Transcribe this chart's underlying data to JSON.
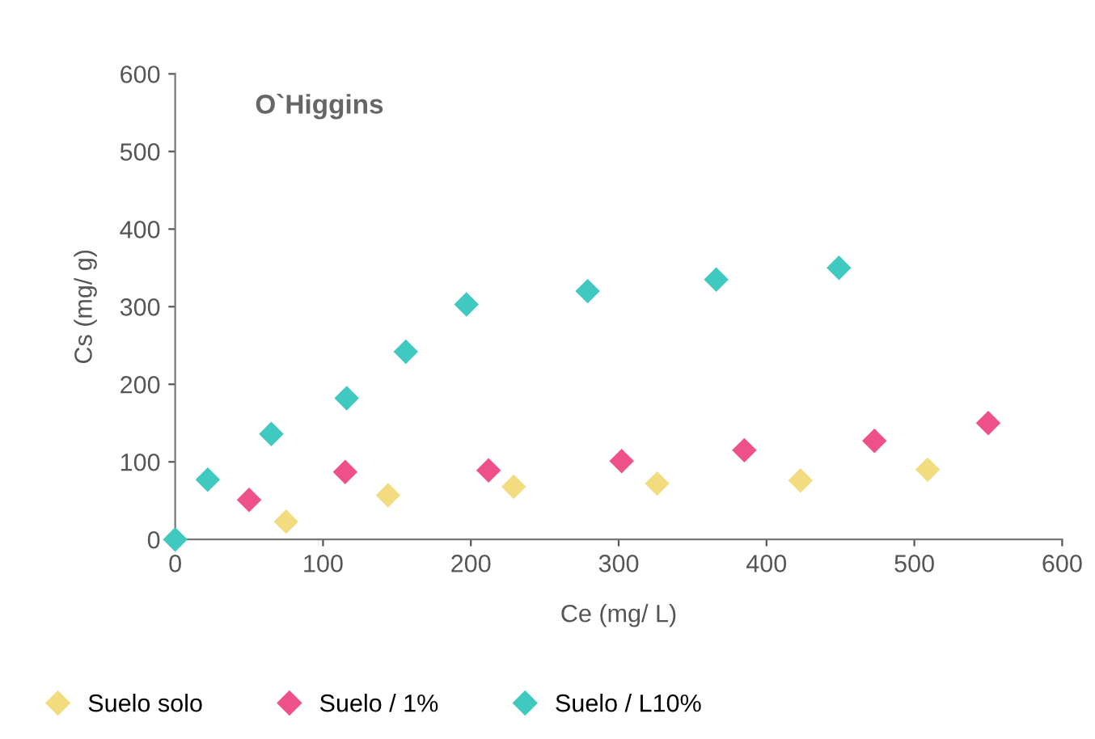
{
  "chart_data": {
    "type": "scatter",
    "title": "O`Higgins",
    "xlabel": "Ce (mg/ L)",
    "ylabel": "Cs (mg/ g)",
    "xlim": [
      0,
      600
    ],
    "ylim": [
      0,
      600
    ],
    "xticks": [
      0,
      100,
      200,
      300,
      400,
      500,
      600
    ],
    "yticks": [
      0,
      100,
      200,
      300,
      400,
      500,
      600
    ],
    "grid": false,
    "legend": "bottom",
    "marker": "diamond",
    "series": [
      {
        "name": "Suelo solo",
        "color": "#f3dc80",
        "x": [
          75,
          144,
          229,
          326,
          423,
          509
        ],
        "values": [
          23,
          57,
          68,
          72,
          76,
          90
        ]
      },
      {
        "name": "Suelo / 1%",
        "color": "#ee5189",
        "x": [
          50,
          115,
          212,
          302,
          385,
          473,
          550
        ],
        "values": [
          51,
          87,
          89,
          101,
          115,
          127,
          150
        ]
      },
      {
        "name": "Suelo / L10%",
        "color": "#3fc9c0",
        "x": [
          0,
          22,
          65,
          116,
          156,
          197,
          279,
          366,
          449
        ],
        "values": [
          0,
          77,
          136,
          182,
          242,
          303,
          320,
          335,
          350
        ]
      }
    ]
  }
}
